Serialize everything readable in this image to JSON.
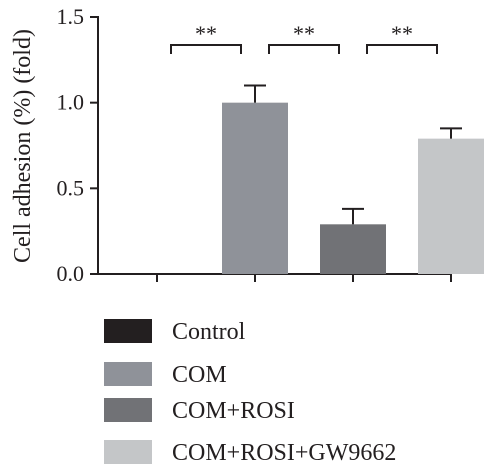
{
  "chart_data": {
    "type": "bar",
    "ylabel": "Cell adhesion (%) (fold)",
    "ylim": [
      0,
      1.5
    ],
    "yticks": [
      "0.0",
      "0.5",
      "1.0",
      "1.5"
    ],
    "ytick_values": [
      0,
      0.5,
      1.0,
      1.5
    ],
    "categories": [
      "Control",
      "COM",
      "COM+ROSI",
      "COM+ROSI+GW9662"
    ],
    "values": [
      0,
      1.0,
      0.29,
      0.79
    ],
    "errors": [
      0,
      0.1,
      0.09,
      0.06
    ],
    "colors": [
      "#231f20",
      "#8f9299",
      "#717276",
      "#c4c6c8"
    ],
    "significance": [
      {
        "from": 0,
        "to": 1,
        "label": "**"
      },
      {
        "from": 1,
        "to": 2,
        "label": "**"
      },
      {
        "from": 2,
        "to": 3,
        "label": "**"
      }
    ],
    "legend": [
      {
        "label": "Control",
        "color": "#231f20"
      },
      {
        "label": "COM",
        "color": "#8f9299"
      },
      {
        "label": "COM+ROSI",
        "color": "#717276"
      },
      {
        "label": "COM+ROSI+GW9662",
        "color": "#c4c6c8"
      }
    ],
    "legend_position": "bottom",
    "grid": false
  }
}
